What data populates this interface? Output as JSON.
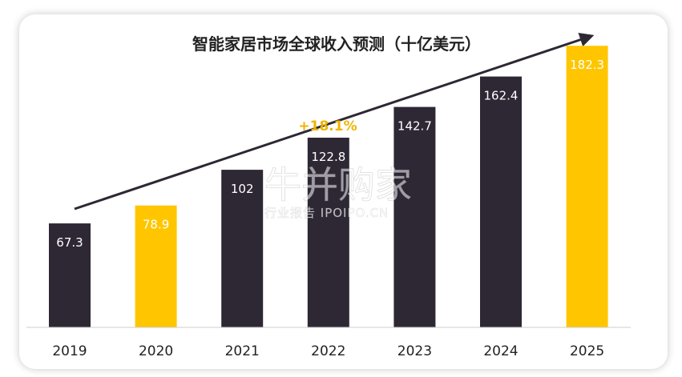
{
  "chart_data": {
    "type": "bar",
    "title": "智能家居市场全球收入预测（十亿美元）",
    "categories": [
      "2019",
      "2020",
      "2021",
      "2022",
      "2023",
      "2024",
      "2025"
    ],
    "values": [
      67.3,
      78.9,
      102,
      122.8,
      142.7,
      162.4,
      182.3
    ],
    "value_labels": [
      "67.3",
      "78.9",
      "102",
      "122.8",
      "142.7",
      "162.4",
      "182.3"
    ],
    "highlighted": [
      false,
      true,
      false,
      false,
      false,
      false,
      true
    ],
    "ylim": [
      0,
      200
    ],
    "grid": false,
    "annotation": "+18.1%",
    "colors": {
      "dark_bar": "#2E2835",
      "highlight_bar": "#FFC600",
      "annotation": "#F0B400",
      "arrow": "#2E2835"
    }
  },
  "watermark": {
    "main": "牛并购家",
    "sub": "行业报告 IPOIPO.CN"
  }
}
